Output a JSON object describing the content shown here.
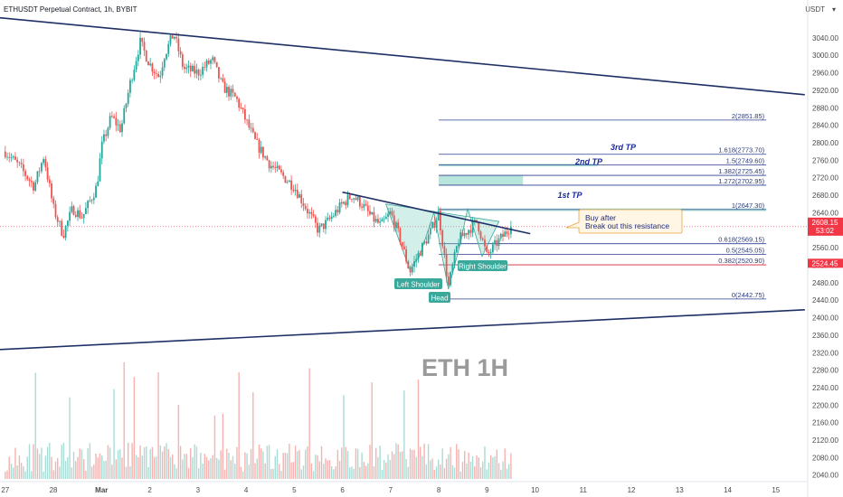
{
  "header": {
    "title": "ETHUSDT Perpetual Contract, 1h, BYBIT",
    "currency": "USDT"
  },
  "watermark": "ETH 1H",
  "price_tags": {
    "last_price": "2608.15",
    "countdown": "53:02",
    "reference_price": "2524.45"
  },
  "annotations": {
    "tp1": "1st TP",
    "tp2": "2nd TP",
    "tp3": "3rd TP",
    "note_line1": "Buy after",
    "note_line2": "Break out this resistance",
    "left_shoulder": "Left Shoulder",
    "head": "Head",
    "right_shoulder": "Right Shoulder"
  },
  "colors": {
    "up": "#26a69a",
    "down": "#ef5350",
    "trendline": "#1e2f66",
    "fib": "#2e3f8f",
    "tp_zone": "#7fd1c0",
    "last_price_tag": "#f23645",
    "reference_tag": "#f23645"
  },
  "chart_data": {
    "type": "candlestick",
    "title": "ETHUSDT Perpetual Contract, 1h, BYBIT",
    "y_axis": {
      "unit": "USDT",
      "ylim": [
        2025,
        3110
      ],
      "ticks": [
        2040,
        2080,
        2120,
        2160,
        2200,
        2240,
        2280,
        2320,
        2360,
        2400,
        2440,
        2480,
        2520,
        2560,
        2600,
        2640,
        2680,
        2720,
        2760,
        2800,
        2840,
        2880,
        2920,
        2960,
        3000,
        3040
      ]
    },
    "x_axis": {
      "ticks": [
        "27",
        "28",
        "Mar",
        "2",
        "3",
        "4",
        "5",
        "6",
        "7",
        "8",
        "9",
        "10",
        "11",
        "12",
        "13",
        "14",
        "15"
      ],
      "tick_day_index": [
        0,
        1,
        2,
        3,
        4,
        5,
        6,
        7,
        8,
        9,
        10,
        11,
        12,
        13,
        14,
        15,
        16
      ]
    },
    "price_path": [
      [
        0.0,
        2780
      ],
      [
        0.3,
        2745
      ],
      [
        0.6,
        2700
      ],
      [
        0.8,
        2770
      ],
      [
        1.0,
        2650
      ],
      [
        1.2,
        2590
      ],
      [
        1.4,
        2650
      ],
      [
        1.6,
        2630
      ],
      [
        1.9,
        2700
      ],
      [
        2.0,
        2790
      ],
      [
        2.2,
        2860
      ],
      [
        2.4,
        2830
      ],
      [
        2.6,
        2940
      ],
      [
        2.8,
        3030
      ],
      [
        3.0,
        2980
      ],
      [
        3.2,
        2950
      ],
      [
        3.3,
        3000
      ],
      [
        3.5,
        3050
      ],
      [
        3.7,
        2970
      ],
      [
        4.0,
        2960
      ],
      [
        4.3,
        2990
      ],
      [
        4.5,
        2930
      ],
      [
        4.8,
        2900
      ],
      [
        5.0,
        2850
      ],
      [
        5.2,
        2800
      ],
      [
        5.5,
        2750
      ],
      [
        5.8,
        2720
      ],
      [
        6.0,
        2700
      ],
      [
        6.2,
        2660
      ],
      [
        6.5,
        2600
      ],
      [
        6.7,
        2620
      ],
      [
        7.0,
        2660
      ],
      [
        7.2,
        2680
      ],
      [
        7.4,
        2660
      ],
      [
        7.6,
        2630
      ],
      [
        7.8,
        2610
      ],
      [
        8.0,
        2640
      ],
      [
        8.2,
        2580
      ],
      [
        8.4,
        2505
      ],
      [
        8.6,
        2550
      ],
      [
        8.8,
        2590
      ],
      [
        9.0,
        2640
      ],
      [
        9.2,
        2470
      ],
      [
        9.4,
        2575
      ],
      [
        9.6,
        2600
      ],
      [
        9.8,
        2620
      ],
      [
        10.0,
        2540
      ],
      [
        10.2,
        2570
      ],
      [
        10.4,
        2595
      ],
      [
        10.5,
        2610
      ]
    ],
    "candle_count": 252,
    "volume_count": 252,
    "last_close": 2608.15,
    "trendlines": [
      {
        "name": "upper-channel",
        "points": [
          [
            -0.5,
            3090
          ],
          [
            16.6,
            2910
          ]
        ]
      },
      {
        "name": "lower-channel",
        "points": [
          [
            -0.5,
            2325
          ],
          [
            16.6,
            2418
          ]
        ]
      },
      {
        "name": "neckline-resistance",
        "points": [
          [
            7.0,
            2687
          ],
          [
            10.9,
            2592
          ]
        ]
      }
    ],
    "fibonacci": {
      "levels": [
        {
          "ratio": "0",
          "price": 2442.75,
          "label": "0(2442.75)"
        },
        {
          "ratio": "0.382",
          "price": 2520.9,
          "label": "0.382(2520.90)"
        },
        {
          "ratio": "0.5",
          "price": 2545.05,
          "label": "0.5(2545.05)"
        },
        {
          "ratio": "0.618",
          "price": 2569.15,
          "label": "0.618(2569.15)"
        },
        {
          "ratio": "1",
          "price": 2647.3,
          "label": "1(2647.30)"
        },
        {
          "ratio": "1.272",
          "price": 2702.95,
          "label": "1.272(2702.95)"
        },
        {
          "ratio": "1.382",
          "price": 2725.45,
          "label": "1.382(2725.45)"
        },
        {
          "ratio": "1.5",
          "price": 2749.6,
          "label": "1.5(2749.60)"
        },
        {
          "ratio": "1.618",
          "price": 2773.7,
          "label": "1.618(2773.70)"
        },
        {
          "ratio": "2",
          "price": 2851.85,
          "label": "2(2851.85)"
        }
      ],
      "x_range": [
        9.0,
        15.8
      ]
    },
    "tp_zones": [
      {
        "name": "1st TP",
        "from": 2644,
        "to": 2650,
        "x": [
          9.0,
          15.8
        ]
      },
      {
        "name": "2nd TP",
        "from": 2703,
        "to": 2725,
        "x": [
          9.0,
          10.75
        ]
      },
      {
        "name": "3rd TP",
        "from": 2746,
        "to": 2752,
        "x": [
          9.0,
          12.3
        ]
      }
    ]
  }
}
